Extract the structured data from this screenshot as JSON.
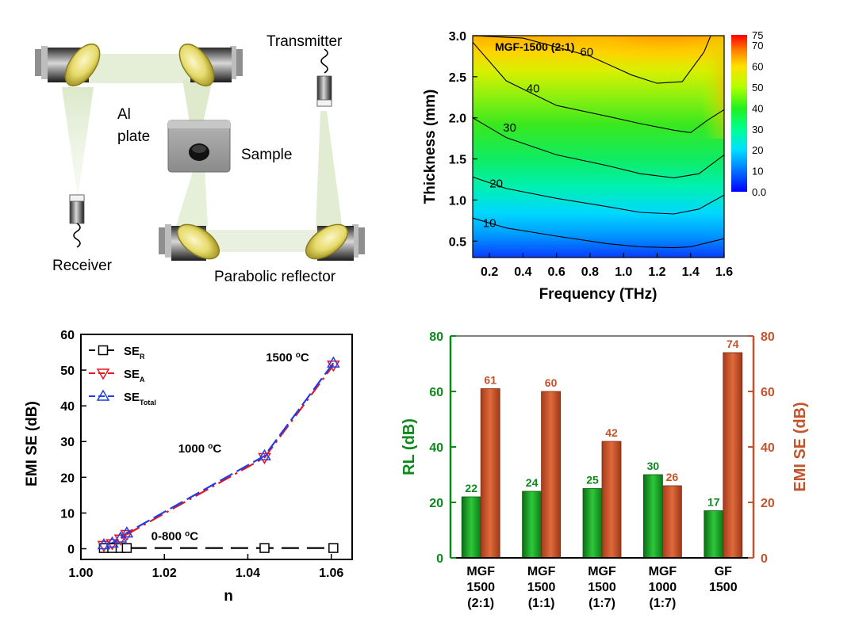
{
  "colors": {
    "green": "#0b8a1a",
    "orange": "#c4532c",
    "red": "#e8141e",
    "blue": "#1e3ee8",
    "beige": "#eaf0df"
  },
  "setup": {
    "labels": {
      "transmitter": "Transmitter",
      "al_plate_line1": "Al",
      "al_plate_line2": "plate",
      "sample": "Sample",
      "receiver": "Receiver",
      "parabolic_reflector": "Parabolic reflector"
    }
  },
  "chart_data": [
    {
      "type": "heatmap",
      "title": "MGF-1500 (2:1)",
      "xlabel": "Frequency (THz)",
      "ylabel": "Thickness (mm)",
      "xlim": [
        0.1,
        1.6
      ],
      "ylim": [
        0.3,
        3.0
      ],
      "x_ticks": [
        "0.2",
        "0.4",
        "0.6",
        "0.8",
        "1.0",
        "1.2",
        "1.4",
        "1.6"
      ],
      "y_ticks": [
        "0.5",
        "1.0",
        "1.5",
        "2.0",
        "2.5",
        "3.0"
      ],
      "colorbar": {
        "range": [
          0,
          75
        ],
        "ticks": [
          "0.0",
          "10",
          "20",
          "30",
          "40",
          "50",
          "60",
          "70",
          "75"
        ]
      },
      "contours": [
        {
          "level": "10",
          "label": "10",
          "points": [
            [
              0.1,
              0.78
            ],
            [
              0.3,
              0.66
            ],
            [
              0.6,
              0.56
            ],
            [
              0.9,
              0.47
            ],
            [
              1.1,
              0.43
            ],
            [
              1.3,
              0.42
            ],
            [
              1.4,
              0.43
            ],
            [
              1.6,
              0.53
            ]
          ]
        },
        {
          "level": "20",
          "label": "20",
          "points": [
            [
              0.1,
              1.28
            ],
            [
              0.3,
              1.14
            ],
            [
              0.6,
              1.02
            ],
            [
              0.9,
              0.92
            ],
            [
              1.1,
              0.85
            ],
            [
              1.3,
              0.83
            ],
            [
              1.45,
              0.89
            ],
            [
              1.6,
              1.06
            ]
          ]
        },
        {
          "level": "30",
          "label": "30",
          "points": [
            [
              0.1,
              2.0
            ],
            [
              0.3,
              1.76
            ],
            [
              0.6,
              1.55
            ],
            [
              0.9,
              1.42
            ],
            [
              1.1,
              1.32
            ],
            [
              1.3,
              1.27
            ],
            [
              1.45,
              1.32
            ],
            [
              1.6,
              1.55
            ]
          ]
        },
        {
          "level": "40",
          "label": "40",
          "points": [
            [
              0.1,
              2.92
            ],
            [
              0.3,
              2.45
            ],
            [
              0.6,
              2.15
            ],
            [
              0.9,
              2.02
            ],
            [
              1.1,
              1.93
            ],
            [
              1.3,
              1.85
            ],
            [
              1.4,
              1.82
            ],
            [
              1.5,
              1.97
            ],
            [
              1.6,
              2.1
            ]
          ]
        },
        {
          "level": "60",
          "label": "60",
          "points": [
            [
              0.1,
              3.0
            ],
            [
              0.4,
              2.97
            ],
            [
              0.8,
              2.75
            ],
            [
              1.05,
              2.52
            ],
            [
              1.2,
              2.42
            ],
            [
              1.35,
              2.44
            ],
            [
              1.48,
              2.8
            ],
            [
              1.52,
              3.0
            ]
          ]
        }
      ]
    },
    {
      "type": "line",
      "xlabel": "n",
      "ylabel": "EMI SE (dB)",
      "xlim": [
        1.0,
        1.065
      ],
      "ylim": [
        -3,
        60
      ],
      "x_ticks": [
        "1.00",
        "1.02",
        "1.04",
        "1.06"
      ],
      "y_ticks": [
        "0",
        "10",
        "20",
        "30",
        "40",
        "50",
        "60"
      ],
      "series": [
        {
          "name": "SE_R",
          "legend_main": "SE",
          "legend_sub": "R",
          "marker": "square",
          "color": "#000000",
          "x": [
            1.0055,
            1.0075,
            1.0095,
            1.011,
            1.044,
            1.0605
          ],
          "y": [
            0.2,
            0.2,
            0.2,
            0.2,
            0.2,
            0.2
          ]
        },
        {
          "name": "SE_A",
          "legend_main": "SE",
          "legend_sub": "A",
          "marker": "triangle-down",
          "color": "#e8141e",
          "x": [
            1.0055,
            1.0075,
            1.0095,
            1.011,
            1.044,
            1.0605
          ],
          "y": [
            0.9,
            1.4,
            2.7,
            4.0,
            25.5,
            51.4
          ]
        },
        {
          "name": "SE_Total",
          "legend_main": "SE",
          "legend_sub": "Total",
          "marker": "triangle-up",
          "color": "#1e3ee8",
          "x": [
            1.0055,
            1.0075,
            1.0095,
            1.011,
            1.044,
            1.0605
          ],
          "y": [
            1.1,
            1.6,
            3.0,
            4.4,
            26.0,
            52.0
          ]
        }
      ],
      "annotations": [
        {
          "text": "1500 ",
          "sup": "o",
          "unit": "C",
          "x": 1.0495,
          "y": 52.5
        },
        {
          "text": "1000 ",
          "sup": "o",
          "unit": "C",
          "x": 1.0285,
          "y": 27.0
        },
        {
          "text": "0-800 ",
          "sup": "o",
          "unit": "C",
          "x": 1.0225,
          "y": 2.4
        }
      ]
    },
    {
      "type": "bar",
      "categories": [
        [
          "MGF",
          "1500",
          "(2:1)"
        ],
        [
          "MGF",
          "1500",
          "(1:1)"
        ],
        [
          "MGF",
          "1500",
          "(1:7)"
        ],
        [
          "MGF",
          "1000",
          "(1:7)"
        ],
        [
          "GF",
          "1500"
        ]
      ],
      "series": [
        {
          "name": "RL",
          "axis": "left",
          "color": "#0b8a1a",
          "values": [
            22,
            24,
            25,
            30,
            17
          ],
          "labels": [
            "22",
            "24",
            "25",
            "30",
            "17"
          ]
        },
        {
          "name": "EMI SE",
          "axis": "right",
          "color": "#c4532c",
          "values": [
            61,
            60,
            42,
            26,
            74
          ],
          "labels": [
            "61",
            "60",
            "42",
            "26",
            "74"
          ]
        }
      ],
      "ylabel_left": "RL (dB)",
      "ylabel_right": "EMI SE (dB)",
      "ylim_left": [
        0,
        80
      ],
      "ylim_right": [
        0,
        80
      ],
      "y_ticks_left": [
        "0",
        "20",
        "40",
        "60",
        "80"
      ],
      "y_ticks_right": [
        "0",
        "20",
        "40",
        "60",
        "80"
      ]
    }
  ]
}
